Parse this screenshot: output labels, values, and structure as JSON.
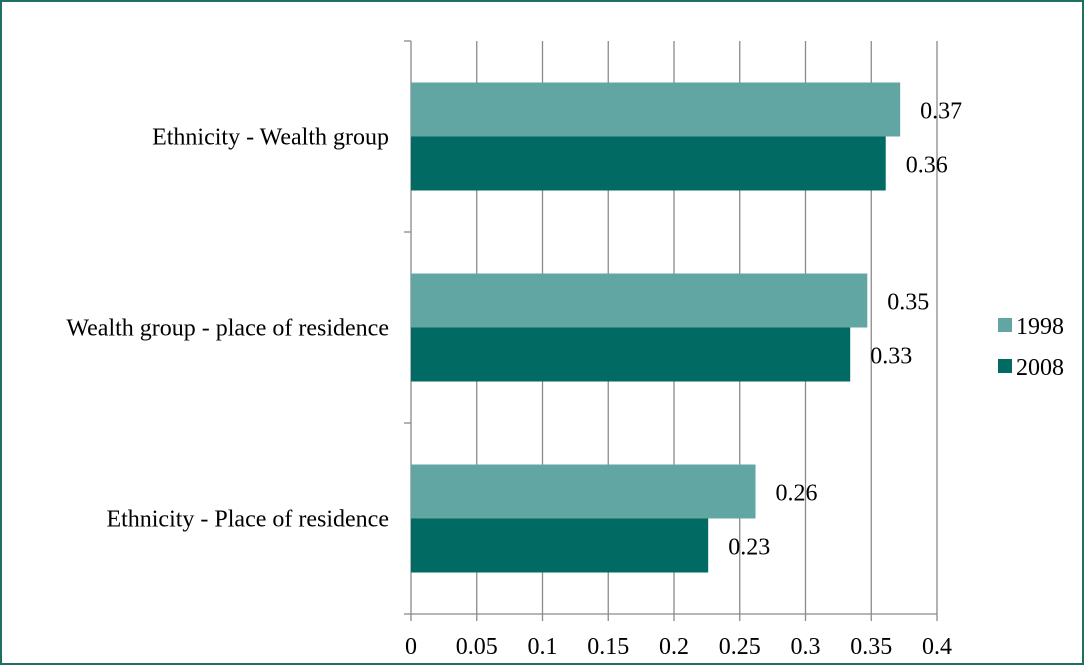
{
  "chart_data": {
    "type": "bar",
    "orientation": "horizontal",
    "title": "",
    "xlabel": "",
    "ylabel": "",
    "categories": [
      "Ethnicity - Wealth group",
      "Wealth group - place of residence",
      "Ethnicity - Place of residence"
    ],
    "series": [
      {
        "name": "1998",
        "color": "#62a6a3",
        "values": [
          0.372,
          0.347,
          0.262
        ],
        "labels": [
          "0.37",
          "0.35",
          "0.26"
        ]
      },
      {
        "name": "2008",
        "color": "#006a63",
        "values": [
          0.361,
          0.334,
          0.226
        ],
        "labels": [
          "0.36",
          "0.33",
          "0.23"
        ]
      }
    ],
    "xlim": [
      0,
      0.4
    ],
    "xticks": [
      0,
      0.05,
      0.1,
      0.15,
      0.2,
      0.25,
      0.3,
      0.35,
      0.4
    ],
    "xtick_labels": [
      "0",
      "0.05",
      "0.1",
      "0.15",
      "0.2",
      "0.25",
      "0.3",
      "0.35",
      "0.4"
    ],
    "grid": "vertical",
    "legend_position": "right",
    "gridline_color": "#8a8a8a",
    "border_color": "#1f6f62"
  }
}
